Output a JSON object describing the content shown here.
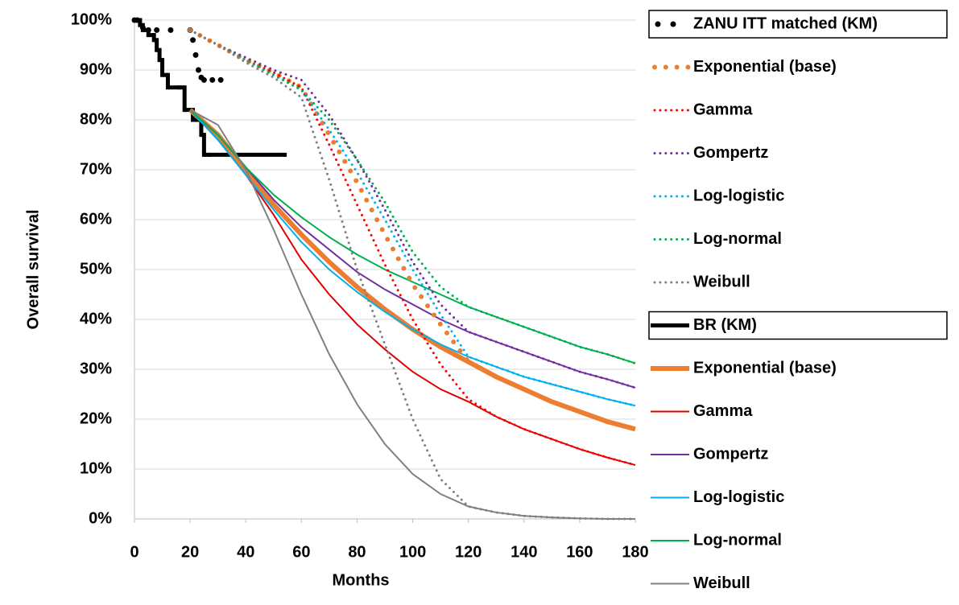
{
  "chart_data": {
    "type": "line",
    "ylabel": "Overall survival",
    "xlabel": "Months",
    "xlim": [
      0,
      180
    ],
    "ylim": [
      0,
      100
    ],
    "grid": true,
    "xticks": [
      0,
      20,
      40,
      60,
      80,
      100,
      120,
      140,
      160,
      180
    ],
    "yticks": [
      {
        "value": 0,
        "label": "0%"
      },
      {
        "value": 10,
        "label": "10%"
      },
      {
        "value": 20,
        "label": "20%"
      },
      {
        "value": 30,
        "label": "30%"
      },
      {
        "value": 40,
        "label": "40%"
      },
      {
        "value": 50,
        "label": "50%"
      },
      {
        "value": 60,
        "label": "60%"
      },
      {
        "value": 70,
        "label": "70%"
      },
      {
        "value": 80,
        "label": "80%"
      },
      {
        "value": 90,
        "label": "90%"
      },
      {
        "value": 100,
        "label": "100%"
      }
    ],
    "legend": "right",
    "series": [
      {
        "name": "ZANU ITT matched (KM)",
        "color": "#000000",
        "style": "markers",
        "boxed": true,
        "x": [
          0,
          1,
          3,
          5,
          8,
          13,
          20,
          21,
          22,
          23,
          24,
          25,
          28,
          31
        ],
        "values": [
          100,
          100,
          98.5,
          98,
          98,
          98,
          98,
          96,
          93,
          90,
          88.5,
          88,
          88,
          88
        ]
      },
      {
        "name": "Exponential (base)",
        "color": "#ed7d31",
        "style": "dotted",
        "width": 6,
        "x": [
          20,
          30,
          40,
          50,
          60,
          70,
          80,
          90,
          100,
          110,
          120,
          130,
          140,
          150,
          160,
          170,
          180
        ],
        "values": [
          98,
          95,
          92,
          89.5,
          86.5,
          77,
          67.5,
          57,
          47,
          39,
          31.5,
          28.5,
          26,
          23.5,
          21.5,
          19.5,
          18
        ]
      },
      {
        "name": "Gamma",
        "color": "#ff0000",
        "style": "dotted",
        "width": 3,
        "x": [
          20,
          30,
          40,
          50,
          60,
          70,
          80,
          90,
          100,
          110,
          120,
          130,
          140,
          150,
          160,
          170,
          180
        ],
        "values": [
          98,
          95,
          92,
          89.5,
          86.5,
          75,
          63,
          51,
          40,
          31,
          24,
          20.5,
          18,
          16,
          14,
          12.3,
          10.8
        ]
      },
      {
        "name": "Gompertz",
        "color": "#7030a0",
        "style": "dotted",
        "width": 3,
        "x": [
          20,
          30,
          40,
          50,
          60,
          70,
          80,
          90,
          100,
          110,
          120,
          130,
          140,
          150,
          160,
          170,
          180
        ],
        "values": [
          98,
          95,
          92.5,
          90,
          88,
          81,
          72,
          62,
          51.5,
          43,
          37.5,
          35.5,
          33.5,
          31.5,
          29.5,
          28,
          26.3
        ]
      },
      {
        "name": "Log-logistic",
        "color": "#00b0f0",
        "style": "dotted",
        "width": 3,
        "x": [
          20,
          30,
          40,
          50,
          60,
          70,
          80,
          90,
          100,
          110,
          120,
          130,
          140,
          150,
          160,
          170,
          180
        ],
        "values": [
          98,
          95,
          92,
          89,
          86,
          78,
          69.5,
          60,
          50,
          41,
          32.5,
          30.5,
          28.5,
          27,
          25.5,
          24,
          22.7
        ]
      },
      {
        "name": "Log-normal",
        "color": "#00b050",
        "style": "dotted",
        "width": 3,
        "x": [
          20,
          30,
          40,
          50,
          60,
          70,
          80,
          90,
          100,
          110,
          120,
          130,
          140,
          150,
          160,
          170,
          180
        ],
        "values": [
          98,
          95,
          92,
          89,
          86,
          80,
          72,
          63.5,
          53.5,
          46.5,
          42.5,
          40.5,
          38.5,
          36.5,
          34.5,
          33,
          31.2
        ]
      },
      {
        "name": "Weibull",
        "color": "#808080",
        "style": "dotted",
        "width": 3,
        "x": [
          20,
          30,
          40,
          50,
          60,
          70,
          80,
          90,
          100,
          110,
          120,
          130,
          140,
          150,
          160,
          170,
          180
        ],
        "values": [
          98,
          95,
          91.5,
          88.5,
          84.5,
          68,
          50,
          35,
          20,
          8,
          2.5,
          1.3,
          0.6,
          0.3,
          0.1,
          0,
          0
        ]
      },
      {
        "name": "BR (KM)",
        "color": "#000000",
        "style": "step",
        "width": 5,
        "boxed": true,
        "x": [
          0,
          2,
          3,
          5,
          7,
          8,
          9,
          10,
          12,
          16,
          18,
          21,
          24,
          25,
          27,
          54
        ],
        "values": [
          100,
          99,
          98,
          97,
          96,
          94,
          92,
          89,
          86.5,
          86.5,
          82,
          80,
          77,
          73,
          73,
          73
        ]
      },
      {
        "name": "Exponential (base)",
        "color": "#ed7d31",
        "style": "solid",
        "width": 6,
        "x": [
          20,
          30,
          40,
          50,
          60,
          70,
          80,
          90,
          100,
          110,
          120,
          130,
          140,
          150,
          160,
          170,
          180
        ],
        "values": [
          82,
          77,
          70,
          63,
          57,
          51.5,
          46.5,
          42,
          38,
          34.5,
          31.5,
          28.5,
          26,
          23.5,
          21.5,
          19.5,
          18
        ]
      },
      {
        "name": "Gamma",
        "color": "#e00000",
        "style": "solid",
        "width": 2,
        "x": [
          20,
          30,
          40,
          50,
          60,
          70,
          80,
          90,
          100,
          110,
          120,
          130,
          140,
          150,
          160,
          170,
          180
        ],
        "values": [
          82,
          76,
          69,
          61,
          52,
          45,
          39,
          34,
          29.5,
          26,
          23.5,
          20.5,
          18,
          16,
          14,
          12.3,
          10.8
        ]
      },
      {
        "name": "Gompertz",
        "color": "#7030a0",
        "style": "solid",
        "width": 2,
        "x": [
          20,
          30,
          40,
          50,
          60,
          70,
          80,
          90,
          100,
          110,
          120,
          130,
          140,
          150,
          160,
          170,
          180
        ],
        "values": [
          82,
          77,
          70.5,
          64,
          58.5,
          54,
          49.5,
          46,
          43,
          40,
          37.5,
          35.5,
          33.5,
          31.5,
          29.5,
          28,
          26.3
        ]
      },
      {
        "name": "Log-logistic",
        "color": "#00b0f0",
        "style": "solid",
        "width": 2,
        "x": [
          20,
          30,
          40,
          50,
          60,
          70,
          80,
          90,
          100,
          110,
          120,
          130,
          140,
          150,
          160,
          170,
          180
        ],
        "values": [
          82,
          76,
          69,
          62,
          55.5,
          50,
          45.5,
          41.5,
          38,
          35,
          32.5,
          30.5,
          28.5,
          27,
          25.5,
          24,
          22.7
        ]
      },
      {
        "name": "Log-normal",
        "color": "#00b050",
        "style": "solid",
        "width": 2,
        "x": [
          20,
          30,
          40,
          50,
          60,
          70,
          80,
          90,
          100,
          110,
          120,
          130,
          140,
          150,
          160,
          170,
          180
        ],
        "values": [
          82,
          77,
          70.5,
          65,
          60.5,
          56.5,
          53,
          50,
          47.5,
          45,
          42.5,
          40.5,
          38.5,
          36.5,
          34.5,
          33,
          31.2
        ]
      },
      {
        "name": "Weibull",
        "color": "#808080",
        "style": "solid",
        "width": 2,
        "x": [
          20,
          30,
          40,
          50,
          60,
          70,
          80,
          90,
          100,
          110,
          120,
          130,
          140,
          150,
          160,
          170,
          180
        ],
        "values": [
          82,
          79,
          70,
          58,
          45,
          33,
          23,
          15,
          9,
          5,
          2.5,
          1.3,
          0.6,
          0.3,
          0.1,
          0,
          0
        ]
      }
    ]
  }
}
